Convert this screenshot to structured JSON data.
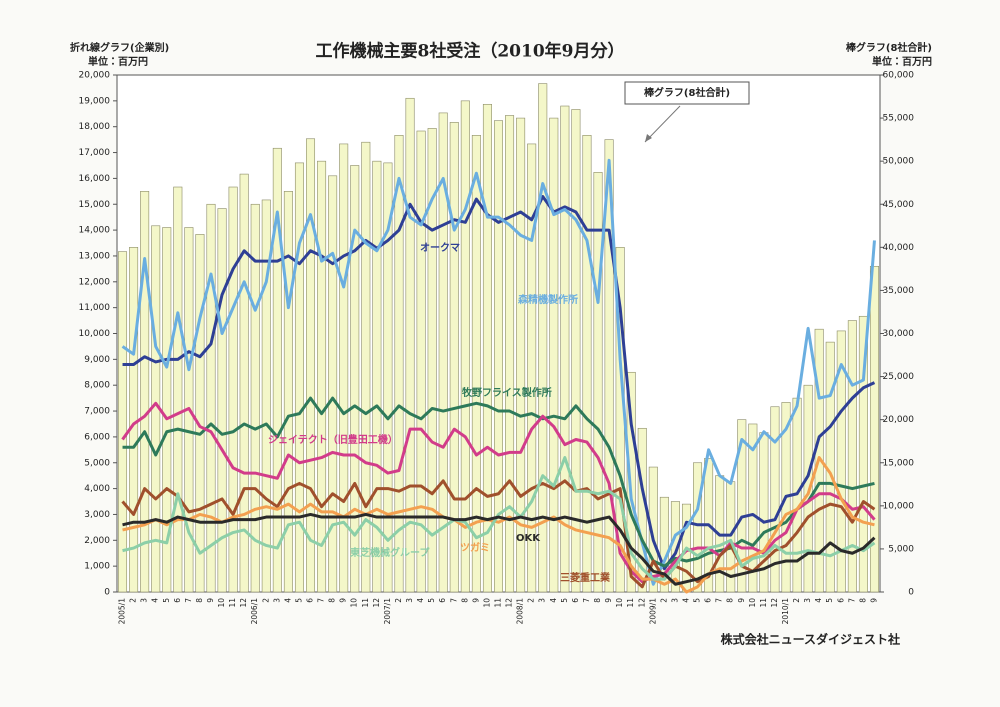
{
  "chart_data": {
    "type": "combo",
    "title": "工作機械主要8社受注（2010年9月分）",
    "y_axis_title": "折れ線グラフ(企業別)",
    "y_axis_unit": "単位：百万円",
    "y2_axis_title": "棒グラフ(8社合計)",
    "y2_axis_unit": "単位：百万円",
    "annotation": "棒グラフ(8社合計)",
    "source": "株式会社ニュースダイジェスト社",
    "categories": [
      "2005/1",
      "2",
      "3",
      "4",
      "5",
      "6",
      "7",
      "8",
      "9",
      "10",
      "11",
      "12",
      "2006/1",
      "2",
      "3",
      "4",
      "5",
      "6",
      "7",
      "8",
      "9",
      "10",
      "11",
      "12",
      "2007/1",
      "2",
      "3",
      "4",
      "5",
      "6",
      "7",
      "8",
      "9",
      "10",
      "11",
      "12",
      "2008/1",
      "2",
      "3",
      "4",
      "5",
      "6",
      "7",
      "8",
      "9",
      "10",
      "11",
      "12",
      "2009/1",
      "2",
      "3",
      "4",
      "5",
      "6",
      "7",
      "8",
      "9",
      "10",
      "11",
      "12",
      "2010/1",
      "2",
      "3",
      "4",
      "5",
      "6",
      "7",
      "8",
      "9"
    ],
    "ylim": [
      0,
      20000
    ],
    "yticks": [
      0,
      {
        "value": 1000,
        "label": "1,000"
      },
      {
        "value": 2000,
        "label": "2,000"
      },
      {
        "value": 3000,
        "label": "3,000"
      },
      {
        "value": 4000,
        "label": "4,000"
      },
      {
        "value": 5000,
        "label": "5,000"
      },
      {
        "value": 6000,
        "label": "6,000"
      },
      {
        "value": 7000,
        "label": "7,000"
      },
      {
        "value": 8000,
        "label": "8,000"
      },
      {
        "value": 9000,
        "label": "9,000"
      },
      {
        "value": 10000,
        "label": "10,000"
      },
      {
        "value": 11000,
        "label": "11,000"
      },
      {
        "value": 12000,
        "label": "12,000"
      },
      {
        "value": 13000,
        "label": "13,000"
      },
      {
        "value": 14000,
        "label": "14,000"
      },
      {
        "value": 15000,
        "label": "15,000"
      },
      {
        "value": 16000,
        "label": "16,000"
      },
      {
        "value": 17000,
        "label": "17,000"
      },
      {
        "value": 18000,
        "label": "18,000"
      },
      {
        "value": 19000,
        "label": "19,000"
      },
      {
        "value": 20000,
        "label": "20,000"
      }
    ],
    "y2lim": [
      0,
      60000
    ],
    "y2ticks": [
      0,
      {
        "value": 5000,
        "label": "5,000"
      },
      {
        "value": 10000,
        "label": "10,000"
      },
      {
        "value": 15000,
        "label": "15,000"
      },
      {
        "value": 20000,
        "label": "20,000"
      },
      {
        "value": 25000,
        "label": "25,000"
      },
      {
        "value": 30000,
        "label": "30,000"
      },
      {
        "value": 35000,
        "label": "35,000"
      },
      {
        "value": 40000,
        "label": "40,000"
      },
      {
        "value": 45000,
        "label": "45,000"
      },
      {
        "value": 50000,
        "label": "50,000"
      },
      {
        "value": 55000,
        "label": "55,000"
      },
      {
        "value": 60000,
        "label": "60,000"
      }
    ],
    "series": [
      {
        "name": "棒グラフ(8社合計)",
        "type": "bar",
        "axis": "y2",
        "color": "#f4f7c9",
        "values": [
          39500,
          40000,
          46500,
          42500,
          42300,
          47000,
          42300,
          41500,
          45000,
          44500,
          47000,
          48500,
          45000,
          45500,
          51500,
          46500,
          49800,
          52600,
          50000,
          48300,
          52000,
          49500,
          52200,
          50000,
          49800,
          53000,
          57300,
          53500,
          53800,
          55600,
          54500,
          57000,
          53000,
          56600,
          54700,
          55300,
          55000,
          52000,
          59000,
          55000,
          56400,
          56000,
          53000,
          48700,
          52500,
          40000,
          25500,
          19000,
          14500,
          11000,
          10500,
          10200,
          15000,
          15500,
          13500,
          12800,
          20000,
          19500,
          18500,
          21500,
          22000,
          22500,
          24000,
          30500,
          29000,
          30300,
          31500,
          32000,
          37800
        ]
      },
      {
        "name": "オークマ",
        "type": "line",
        "color": "#2e3f95",
        "values": [
          8800,
          8800,
          9100,
          8900,
          9000,
          9000,
          9300,
          9100,
          9600,
          11500,
          12500,
          13200,
          12800,
          12800,
          12800,
          13000,
          12700,
          13200,
          13000,
          12700,
          13000,
          13200,
          13600,
          13300,
          13600,
          14000,
          15000,
          14300,
          14000,
          14200,
          14400,
          14300,
          15200,
          14600,
          14300,
          14500,
          14700,
          14400,
          15300,
          14700,
          14900,
          14700,
          14000,
          14000,
          14000,
          11000,
          6500,
          4000,
          2000,
          900,
          1500,
          2700,
          2600,
          2600,
          2200,
          2200,
          2900,
          3000,
          2700,
          2800,
          3700,
          3800,
          4500,
          6000,
          6400,
          7000,
          7500,
          7900,
          8100
        ]
      },
      {
        "name": "森精機製作所",
        "type": "line",
        "color": "#6aaee0",
        "values": [
          9500,
          9200,
          12900,
          9500,
          8700,
          10800,
          8600,
          10600,
          12300,
          10000,
          11000,
          12000,
          10900,
          12000,
          14700,
          11000,
          13500,
          14600,
          12800,
          13100,
          11800,
          14000,
          13500,
          13200,
          14000,
          16000,
          14500,
          14200,
          15200,
          16000,
          14000,
          14800,
          16200,
          14500,
          14500,
          14200,
          13800,
          13600,
          15800,
          14600,
          14800,
          14400,
          13600,
          11200,
          16700,
          9000,
          3600,
          1900,
          300,
          1200,
          2200,
          2500,
          3200,
          5500,
          4500,
          4200,
          5900,
          5500,
          6200,
          5800,
          6300,
          7200,
          10200,
          7500,
          7600,
          8800,
          8000,
          8200,
          13600
        ]
      },
      {
        "name": "牧野フライス製作所",
        "type": "line",
        "color": "#2e7a5a",
        "values": [
          5600,
          5600,
          6200,
          5300,
          6200,
          6300,
          6200,
          6100,
          6500,
          6100,
          6200,
          6500,
          6300,
          6500,
          6000,
          6800,
          6900,
          7500,
          6900,
          7500,
          6900,
          7200,
          6900,
          7200,
          6700,
          7200,
          6900,
          6700,
          7100,
          7000,
          7100,
          7200,
          7300,
          7200,
          7000,
          7000,
          6800,
          6900,
          6700,
          6800,
          6700,
          7200,
          6700,
          6300,
          5600,
          4500,
          3000,
          2000,
          1200,
          1000,
          1300,
          1200,
          1300,
          1500,
          1600,
          1700,
          2000,
          1800,
          2300,
          2500,
          2700,
          3200,
          3500,
          4200,
          4200,
          4100,
          4000,
          4100,
          4200
        ]
      },
      {
        "name": "ジェイテクト（旧豊田工機）",
        "type": "line",
        "color": "#d23c8a",
        "values": [
          5900,
          6500,
          6800,
          7300,
          6700,
          6900,
          7100,
          6400,
          6200,
          5500,
          4800,
          4600,
          4600,
          4500,
          4400,
          5300,
          5000,
          5100,
          5200,
          5400,
          5300,
          5300,
          5000,
          4900,
          4600,
          4700,
          6300,
          6300,
          5800,
          5600,
          6300,
          6000,
          5300,
          5600,
          5300,
          5400,
          5400,
          6300,
          6800,
          6400,
          5700,
          5900,
          5800,
          5200,
          4200,
          1500,
          800,
          400,
          600,
          700,
          1200,
          1600,
          1700,
          1700,
          1400,
          1900,
          1700,
          1700,
          1500,
          2000,
          2300,
          3200,
          3500,
          3800,
          3800,
          3600,
          3200,
          3300,
          2800
        ]
      },
      {
        "name": "三菱重工業",
        "type": "line",
        "color": "#a0502c",
        "values": [
          3500,
          3000,
          4000,
          3600,
          4000,
          3700,
          3100,
          3200,
          3400,
          3600,
          3000,
          4000,
          4000,
          3600,
          3300,
          4000,
          4200,
          4000,
          3300,
          3800,
          3500,
          4200,
          3300,
          4000,
          4000,
          3900,
          4100,
          4100,
          3800,
          4300,
          3600,
          3600,
          4000,
          3700,
          3800,
          4300,
          3700,
          4000,
          4200,
          4000,
          4300,
          3900,
          4000,
          3600,
          3800,
          4000,
          600,
          200,
          1200,
          500,
          1000,
          800,
          400,
          600,
          1400,
          1800,
          1000,
          800,
          1200,
          1600,
          1800,
          2300,
          2900,
          3200,
          3400,
          3300,
          2700,
          3500,
          3200
        ]
      },
      {
        "name": "ツガミ",
        "type": "line",
        "color": "#f3a050",
        "values": [
          2400,
          2500,
          2600,
          2800,
          2600,
          2800,
          2800,
          3000,
          2900,
          2700,
          2900,
          3000,
          3200,
          3300,
          3200,
          3400,
          3100,
          3400,
          3100,
          3100,
          2900,
          3200,
          3000,
          3200,
          3000,
          3100,
          3200,
          3300,
          3200,
          2900,
          2800,
          2500,
          2700,
          2800,
          2700,
          2900,
          2600,
          2500,
          2700,
          2900,
          2600,
          2400,
          2300,
          2200,
          2100,
          1800,
          1000,
          500,
          500,
          300,
          500,
          0,
          200,
          700,
          900,
          900,
          1200,
          1400,
          1600,
          2300,
          3000,
          3200,
          3800,
          5200,
          4600,
          3600,
          2900,
          2700,
          2600
        ]
      },
      {
        "name": "東芝機械グループ",
        "type": "line",
        "color": "#8ccfa8",
        "values": [
          1600,
          1700,
          1900,
          2000,
          1900,
          3800,
          2300,
          1500,
          1800,
          2100,
          2300,
          2400,
          2000,
          1800,
          1700,
          2600,
          2700,
          2000,
          1800,
          2600,
          2700,
          2200,
          2800,
          2500,
          2000,
          2400,
          2700,
          2600,
          2200,
          2500,
          2800,
          2700,
          2100,
          2300,
          3000,
          3300,
          2900,
          3500,
          4500,
          4100,
          5200,
          3900,
          3900,
          3800,
          3900,
          3600,
          1500,
          900,
          500,
          500,
          1000,
          1700,
          1400,
          1700,
          1800,
          2000,
          1000,
          1300,
          1400,
          1800,
          1500,
          1500,
          1600,
          1500,
          1400,
          1600,
          1800,
          1600,
          1900
        ]
      },
      {
        "name": "OKK",
        "type": "line",
        "color": "#2a2a2a",
        "values": [
          2600,
          2700,
          2700,
          2800,
          2700,
          2900,
          2800,
          2700,
          2700,
          2700,
          2800,
          2800,
          2800,
          2900,
          2900,
          2900,
          2900,
          3000,
          2900,
          2900,
          2900,
          2900,
          3000,
          2900,
          2900,
          2900,
          2900,
          2900,
          2900,
          2900,
          2800,
          2800,
          2900,
          2800,
          2900,
          2800,
          2900,
          2800,
          2900,
          2800,
          2900,
          2800,
          2700,
          2800,
          2900,
          2400,
          1700,
          1300,
          800,
          700,
          300,
          400,
          500,
          700,
          800,
          600,
          700,
          800,
          900,
          1100,
          1200,
          1200,
          1500,
          1500,
          1900,
          1600,
          1500,
          1700,
          2100
        ]
      }
    ]
  }
}
